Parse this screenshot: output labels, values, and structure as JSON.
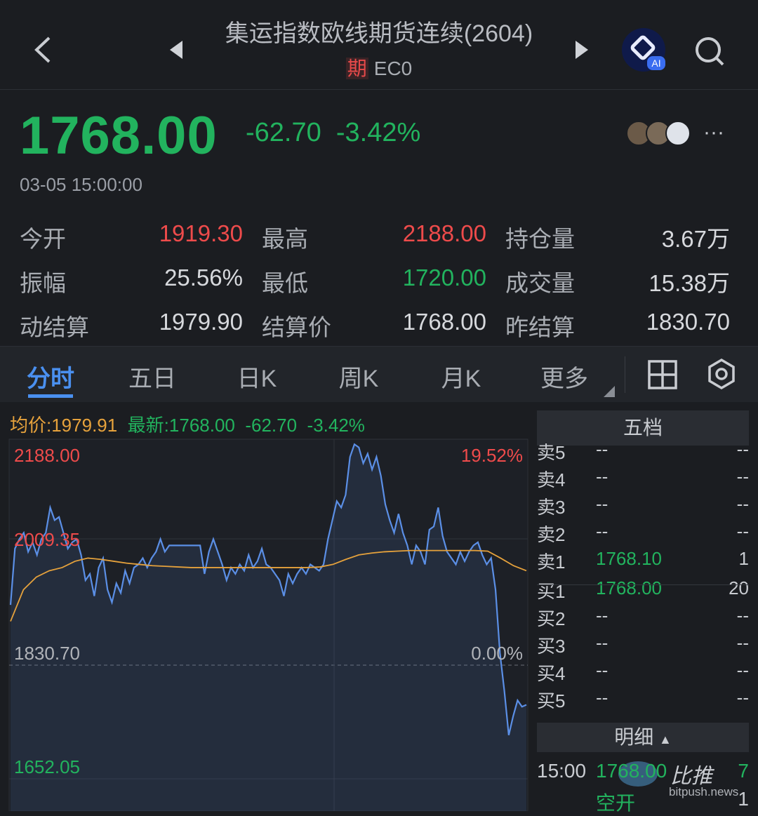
{
  "header": {
    "title": "集运指数欧线期货连续(2604)",
    "badge": "期",
    "code": "EC0",
    "ai_label": "AI"
  },
  "quote": {
    "price": "1768.00",
    "change": "-62.70",
    "change_pct": "-3.42%",
    "time": "03-05 15:00:00"
  },
  "stats": [
    [
      {
        "label": "今开",
        "value": "1919.30",
        "color": "red"
      },
      {
        "label": "最高",
        "value": "2188.00",
        "color": "red"
      },
      {
        "label": "持仓量",
        "value": "3.67万",
        "color": "white"
      }
    ],
    [
      {
        "label": "振幅",
        "value": "25.56%",
        "color": "white"
      },
      {
        "label": "最低",
        "value": "1720.00",
        "color": "green"
      },
      {
        "label": "成交量",
        "value": "15.38万",
        "color": "white"
      }
    ],
    [
      {
        "label": "动结算",
        "value": "1979.90",
        "color": "white"
      },
      {
        "label": "结算价",
        "value": "1768.00",
        "color": "white"
      },
      {
        "label": "昨结算",
        "value": "1830.70",
        "color": "white"
      }
    ]
  ],
  "tabs": [
    "分时",
    "五日",
    "日K",
    "周K",
    "月K",
    "更多"
  ],
  "active_tab": "分时",
  "info": {
    "avg": "均价:1979.91",
    "latest": "最新:1768.00",
    "change": "-62.70",
    "change_pct": "-3.42%"
  },
  "colors": {
    "green": "#22b35e",
    "red": "#ee4b4b",
    "orange": "#e6a23c",
    "line": "#5b8fe6"
  },
  "chart_data": {
    "type": "line",
    "y_labels_left": [
      "2188.00",
      "2009.35",
      "1830.70",
      "1652.05"
    ],
    "y_labels_right": [
      "19.52%",
      "0.00%"
    ],
    "ylim_top": 2188.0,
    "prev_settle": 1830.7,
    "series": [
      {
        "values": [
          1926,
          2015,
          2030,
          2040,
          2010,
          2025,
          2005,
          2030,
          2040,
          2080,
          2060,
          2065,
          2040,
          2015,
          2025,
          2030,
          2005,
          1965,
          1975,
          1940,
          1985,
          2000,
          1950,
          1930,
          1960,
          1945,
          1980,
          1960,
          1985,
          1990,
          2000,
          1985,
          2000,
          2010,
          2030,
          2010,
          2020,
          2020,
          2020,
          2020,
          2020,
          2020,
          2020,
          2020,
          1975,
          2010,
          2030,
          2010,
          1990,
          1965,
          1985,
          1975,
          1990,
          1980,
          2005,
          1985,
          1995,
          2015,
          1990,
          1985,
          1975,
          1965,
          1940,
          1975,
          1960,
          1975,
          1985,
          1975,
          1990,
          1985,
          1980,
          1990,
          2030,
          2060,
          2090,
          2080,
          2100,
          2160,
          2180,
          2175,
          2150,
          2165,
          2140,
          2160,
          2130,
          2085,
          2060,
          2040,
          2070,
          2040,
          2020,
          1990,
          2020,
          2010,
          1990,
          2045,
          2050,
          2080,
          2035,
          2010,
          2000,
          1990,
          2010,
          1995,
          2010,
          2020,
          2025,
          2005,
          1990,
          2000,
          1950,
          1850,
          1790,
          1720,
          1750,
          1775,
          1765,
          1768
        ]
      },
      {
        "values": [
          1900,
          1950,
          1970,
          1980,
          1985,
          1995,
          2000,
          1998,
          1995,
          1992,
          1990,
          1988,
          1987,
          1986,
          1985,
          1985,
          1985,
          1985,
          1985,
          1985,
          1985,
          1985,
          1985,
          1985,
          1986,
          1990,
          1998,
          2005,
          2008,
          2010,
          2011,
          2012,
          2012,
          2012,
          2012,
          2012,
          2012,
          2011,
          2000,
          1988,
          1980
        ]
      }
    ]
  },
  "order_book": {
    "title": "五档",
    "rows": [
      {
        "label": "卖5",
        "price": "--",
        "qty": "--"
      },
      {
        "label": "卖4",
        "price": "--",
        "qty": "--"
      },
      {
        "label": "卖3",
        "price": "--",
        "qty": "--"
      },
      {
        "label": "卖2",
        "price": "--",
        "qty": "--"
      },
      {
        "label": "卖1",
        "price": "1768.10",
        "qty": "1"
      },
      {
        "label": "买1",
        "price": "1768.00",
        "qty": "20"
      },
      {
        "label": "买2",
        "price": "--",
        "qty": "--"
      },
      {
        "label": "买3",
        "price": "--",
        "qty": "--"
      },
      {
        "label": "买4",
        "price": "--",
        "qty": "--"
      },
      {
        "label": "买5",
        "price": "--",
        "qty": "--"
      }
    ],
    "detail_title": "明细",
    "trade": {
      "time": "15:00",
      "price": "1768.00",
      "qty": "7",
      "type": "空开",
      "qty2": "1"
    }
  },
  "watermark": {
    "name": "比推",
    "site": "bitpush.news"
  }
}
